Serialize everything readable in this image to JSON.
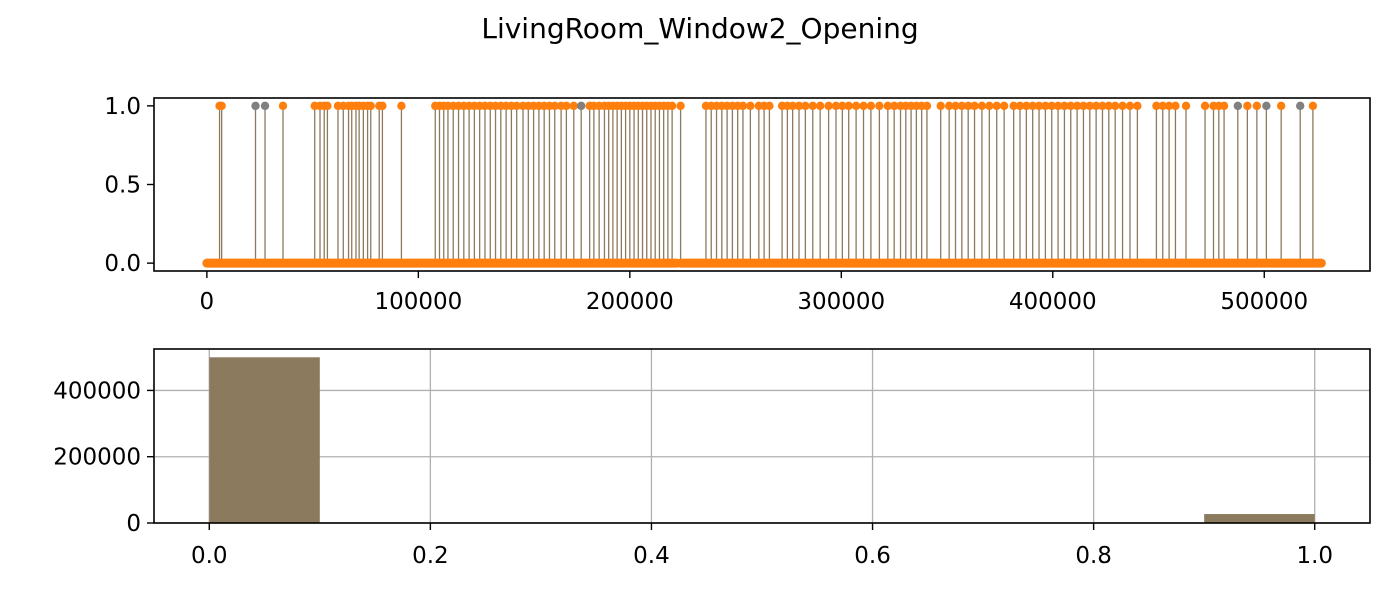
{
  "figure": {
    "title": "LivingRoom_Window2_Opening"
  },
  "colors": {
    "stem": "#8c7a5e",
    "marker_one": "#ff7f0e",
    "marker_gray": "#808080",
    "hist_bar": "#8c7a5e",
    "grid": "#b0b0b0",
    "axis": "#000000"
  },
  "chart_data": [
    {
      "type": "scatter",
      "subtype": "stem",
      "title": "LivingRoom_Window2_Opening",
      "xlabel": "",
      "ylabel": "",
      "xlim": [
        -25000,
        550000
      ],
      "ylim": [
        -0.05,
        1.05
      ],
      "xticks": [
        0,
        100000,
        200000,
        300000,
        400000,
        500000
      ],
      "xtick_labels": [
        "0",
        "100000",
        "200000",
        "300000",
        "400000",
        "500000"
      ],
      "yticks": [
        0.0,
        0.5,
        1.0
      ],
      "ytick_labels": [
        "0.0",
        "0.5",
        "1.0"
      ],
      "grid": false,
      "baseline_value": 0,
      "baseline_x_range": [
        0,
        527000
      ],
      "gap_range": [
        222000,
        224000
      ],
      "events_value": 1,
      "events_x": [
        6000,
        7000,
        23000,
        27500,
        36000,
        51000,
        53500,
        55500,
        57000,
        62000,
        64500,
        67000,
        68500,
        70500,
        72000,
        74000,
        76000,
        77500,
        81500,
        83000,
        92000,
        108000,
        110000,
        112000,
        114000,
        116500,
        119000,
        121500,
        124000,
        126500,
        129000,
        131500,
        134000,
        136500,
        139000,
        141500,
        144000,
        146500,
        149500,
        152000,
        154500,
        157000,
        159500,
        162000,
        164500,
        167500,
        170000,
        173500,
        177000,
        181000,
        183000,
        185500,
        188000,
        190000,
        192000,
        194000,
        196000,
        198000,
        200000,
        202000,
        204000,
        206000,
        208000,
        210000,
        212000,
        214000,
        216000,
        218000,
        220000,
        224000,
        236000,
        238500,
        241000,
        243500,
        246000,
        248500,
        251000,
        253500,
        257000,
        261000,
        263500,
        266000,
        272000,
        274500,
        277000,
        280000,
        283000,
        286500,
        290000,
        294000,
        297500,
        300500,
        303500,
        307000,
        310500,
        314000,
        318000,
        322000,
        325000,
        328000,
        330500,
        333000,
        335500,
        338000,
        340500,
        347000,
        351000,
        354000,
        357000,
        360000,
        363000,
        366500,
        370000,
        373500,
        377000,
        381500,
        384500,
        387500,
        390500,
        393500,
        396500,
        399500,
        402500,
        405500,
        408500,
        411500,
        414500,
        417500,
        420500,
        423500,
        426500,
        429500,
        433000,
        436500,
        440000,
        449000,
        452000,
        455000,
        458000,
        463000,
        472000,
        476000,
        478500,
        481000,
        487500,
        492000,
        496500,
        501000,
        508000,
        517000,
        523000
      ],
      "gray_event_x": [
        23000,
        27500,
        177000,
        487500,
        501000,
        517000
      ]
    },
    {
      "type": "bar",
      "subtype": "histogram",
      "title": "",
      "xlabel": "",
      "ylabel": "",
      "xlim": [
        -0.05,
        1.05
      ],
      "ylim": [
        0,
        525000
      ],
      "xticks": [
        0.0,
        0.2,
        0.4,
        0.6,
        0.8,
        1.0
      ],
      "xtick_labels": [
        "0.0",
        "0.2",
        "0.4",
        "0.6",
        "0.8",
        "1.0"
      ],
      "yticks": [
        0,
        200000,
        400000
      ],
      "ytick_labels": [
        "0",
        "200000",
        "400000"
      ],
      "grid": true,
      "bins": [
        {
          "start": 0.0,
          "end": 0.1,
          "count": 500000
        },
        {
          "start": 0.9,
          "end": 1.0,
          "count": 27000
        }
      ]
    }
  ]
}
